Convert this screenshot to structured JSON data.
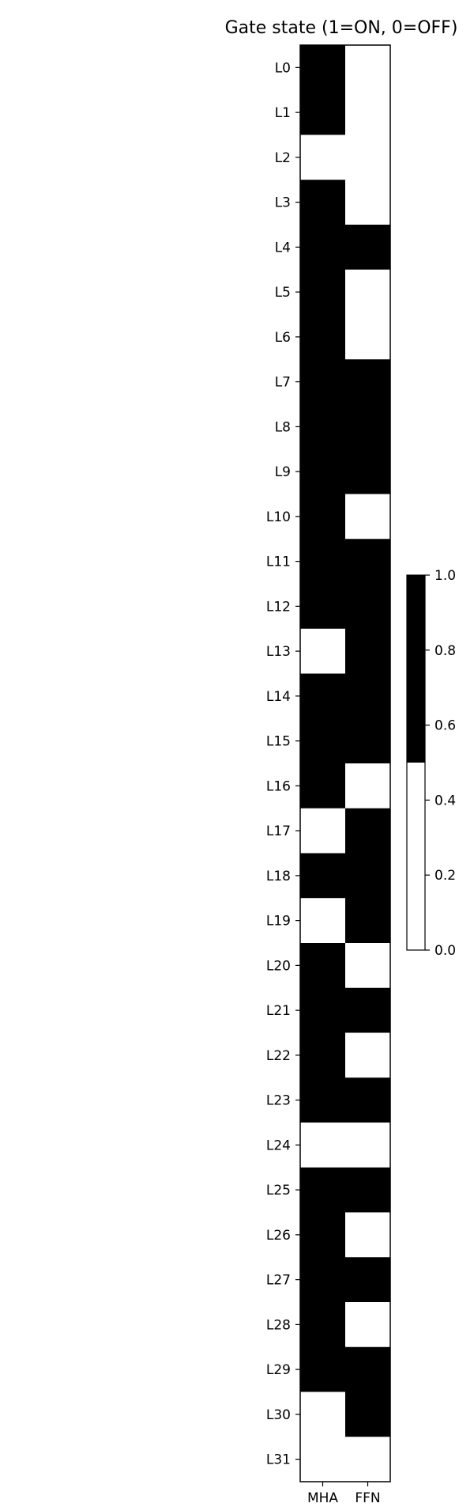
{
  "chart_data": {
    "type": "heatmap",
    "title": "Gate state (1=ON, 0=OFF)",
    "x_categories": [
      "MHA",
      "FFN"
    ],
    "y_categories": [
      "L0",
      "L1",
      "L2",
      "L3",
      "L4",
      "L5",
      "L6",
      "L7",
      "L8",
      "L9",
      "L10",
      "L11",
      "L12",
      "L13",
      "L14",
      "L15",
      "L16",
      "L17",
      "L18",
      "L19",
      "L20",
      "L21",
      "L22",
      "L23",
      "L24",
      "L25",
      "L26",
      "L27",
      "L28",
      "L29",
      "L30",
      "L31"
    ],
    "values": [
      [
        1,
        0
      ],
      [
        1,
        0
      ],
      [
        0,
        0
      ],
      [
        1,
        0
      ],
      [
        1,
        1
      ],
      [
        1,
        0
      ],
      [
        1,
        0
      ],
      [
        1,
        1
      ],
      [
        1,
        1
      ],
      [
        1,
        1
      ],
      [
        1,
        0
      ],
      [
        1,
        1
      ],
      [
        1,
        1
      ],
      [
        0,
        1
      ],
      [
        1,
        1
      ],
      [
        1,
        1
      ],
      [
        1,
        0
      ],
      [
        0,
        1
      ],
      [
        1,
        1
      ],
      [
        0,
        1
      ],
      [
        1,
        0
      ],
      [
        1,
        1
      ],
      [
        1,
        0
      ],
      [
        1,
        1
      ],
      [
        0,
        0
      ],
      [
        1,
        1
      ],
      [
        1,
        0
      ],
      [
        1,
        1
      ],
      [
        1,
        0
      ],
      [
        1,
        1
      ],
      [
        0,
        1
      ],
      [
        0,
        0
      ]
    ],
    "colormap": {
      "on_color": "#000000",
      "off_color": "#ffffff",
      "threshold": 0.5
    },
    "colorbar": {
      "range": [
        0,
        1
      ],
      "ticks": [
        0.0,
        0.2,
        0.4,
        0.6,
        0.8,
        1.0
      ],
      "tick_labels": [
        "0.0",
        "0.2",
        "0.4",
        "0.6",
        "0.8",
        "1.0"
      ]
    }
  }
}
